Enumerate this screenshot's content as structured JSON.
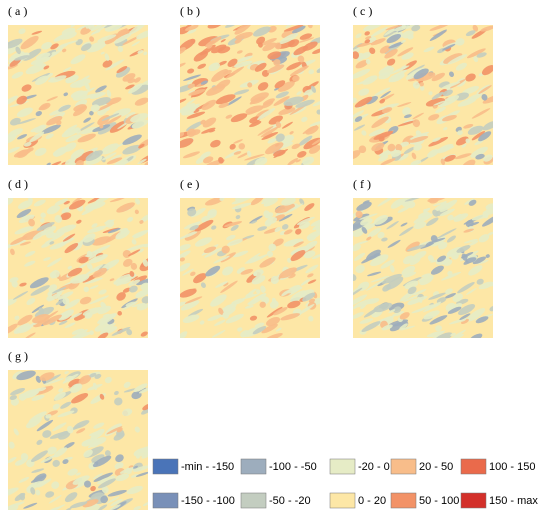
{
  "panels": [
    {
      "label": "( a )"
    },
    {
      "label": "( b )"
    },
    {
      "label": "( c )"
    },
    {
      "label": "( d )"
    },
    {
      "label": "( e )"
    },
    {
      "label": "( f )"
    },
    {
      "label": "( g )"
    }
  ],
  "legend": [
    {
      "label": "-min - -150",
      "color": "#4a74b8"
    },
    {
      "label": "-150 - -100",
      "color": "#7990b8"
    },
    {
      "label": "-100 - -50",
      "color": "#9dadbd"
    },
    {
      "label": "-50 - -20",
      "color": "#c3cdc0"
    },
    {
      "label": "-20 - 0",
      "color": "#e6ecc6"
    },
    {
      "label": "0 - 20",
      "color": "#fde7a6"
    },
    {
      "label": "20 - 50",
      "color": "#f8bd8a"
    },
    {
      "label": "50 - 100",
      "color": "#f29267"
    },
    {
      "label": "100 - 150",
      "color": "#ea6a4b"
    },
    {
      "label": "150 - max",
      "color": "#d3302a"
    }
  ]
}
